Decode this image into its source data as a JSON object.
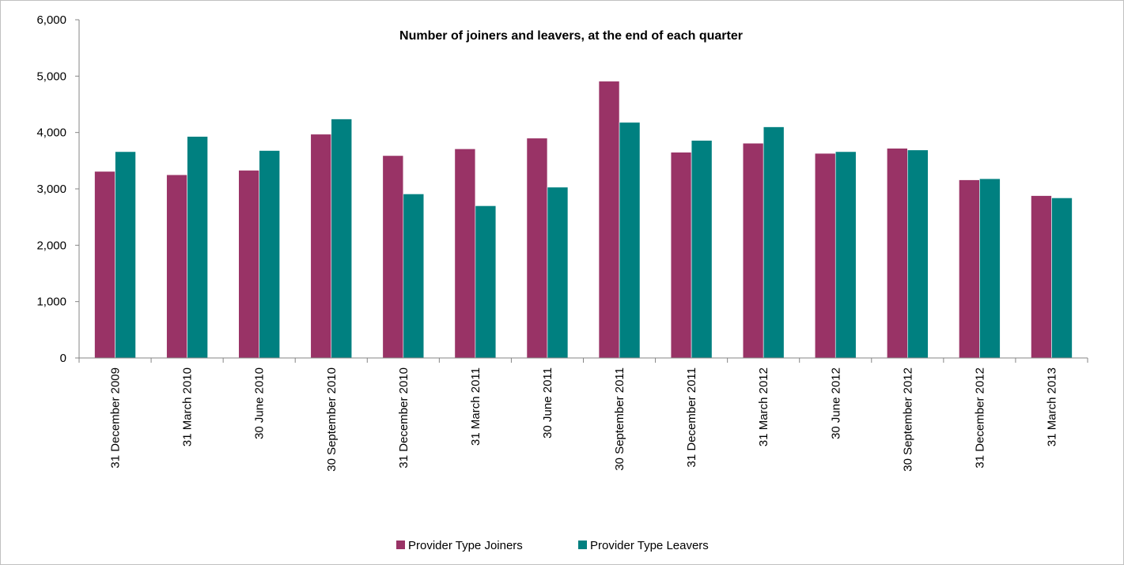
{
  "chart_data": {
    "type": "bar",
    "title": "Number of joiners and leavers, at the end of each quarter",
    "xlabel": "",
    "ylabel": "",
    "ylim": [
      0,
      6000
    ],
    "yticks": [
      "0",
      "1,000",
      "2,000",
      "3,000",
      "4,000",
      "5,000",
      "6,000"
    ],
    "grid": false,
    "legend_position": "bottom",
    "categories": [
      "31 December 2009",
      "31 March 2010",
      "30 June 2010",
      "30 September 2010",
      "31 December 2010",
      "31 March 2011",
      "30 June 2011",
      "30 September 2011",
      "31 December 2011",
      "31 March 2012",
      "30 June 2012",
      "30 September 2012",
      "31 December 2012",
      "31 March 2013"
    ],
    "series": [
      {
        "name": "Provider Type Joiners",
        "color": "#993366",
        "values": [
          3310,
          3250,
          3330,
          3970,
          3590,
          3710,
          3900,
          4910,
          3650,
          3810,
          3630,
          3720,
          3160,
          2880
        ]
      },
      {
        "name": "Provider Type Leavers",
        "color": "#008080",
        "values": [
          3660,
          3930,
          3680,
          4240,
          2910,
          2700,
          3030,
          4180,
          3860,
          4100,
          3660,
          3690,
          3180,
          2840
        ]
      }
    ]
  }
}
